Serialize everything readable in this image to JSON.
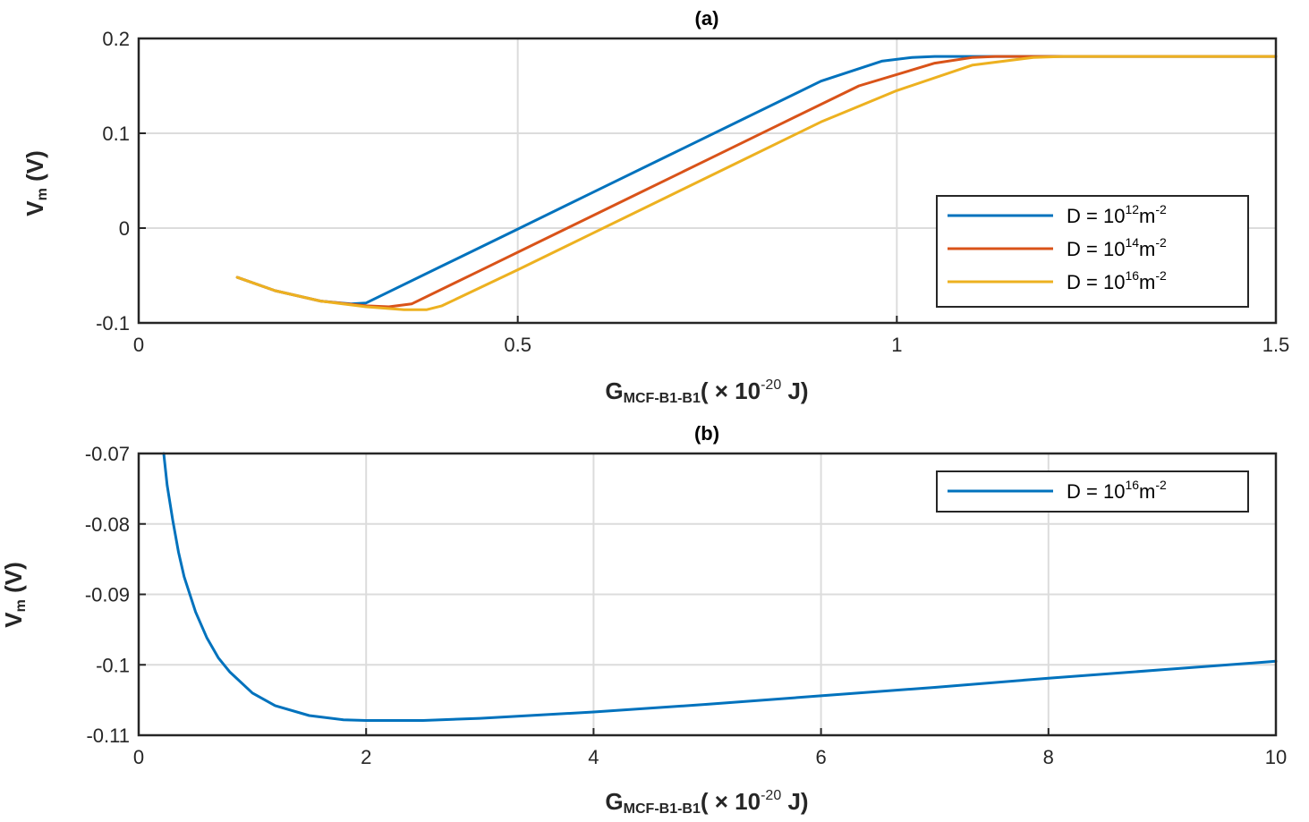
{
  "colors": {
    "blue": "#0072BD",
    "orange": "#D95319",
    "yellow": "#EDB120",
    "axis": "#262626",
    "grid": "#dcdcdc"
  },
  "chart_data": [
    {
      "type": "line",
      "title": "(a)",
      "xlabel": {
        "main": "G",
        "sub": "MCF-B1-B1",
        "rest": "( × 10",
        "exp": "-20",
        "unit": " J)"
      },
      "ylabel": {
        "main": "V",
        "sub": "m",
        "unit": " (V)"
      },
      "xlim": [
        0,
        1.5
      ],
      "ylim": [
        -0.1,
        0.2
      ],
      "xticks": [
        0,
        0.5,
        1,
        1.5
      ],
      "xtick_labels": [
        "0",
        "0.5",
        "1",
        "1.5"
      ],
      "yticks": [
        -0.1,
        0,
        0.1,
        0.2
      ],
      "ytick_labels": [
        "-0.1",
        "0",
        "0.1",
        "0.2"
      ],
      "grid": true,
      "legend_position": "middle-right",
      "series": [
        {
          "name": "D = 10^12 m^-2",
          "legend": {
            "pre": "D  =  10",
            "exp": "12",
            "mid": "m",
            "exp2": "-2"
          },
          "color": "#0072BD",
          "x": [
            0.13,
            0.18,
            0.24,
            0.28,
            0.3,
            0.4,
            0.5,
            0.6,
            0.7,
            0.8,
            0.9,
            0.98,
            1.02,
            1.05,
            1.1,
            1.2,
            1.3,
            1.4,
            1.5
          ],
          "y": [
            -0.052,
            -0.066,
            -0.077,
            -0.08,
            -0.079,
            -0.04,
            -0.001,
            0.038,
            0.077,
            0.116,
            0.155,
            0.176,
            0.18,
            0.181,
            0.181,
            0.181,
            0.181,
            0.181,
            0.181
          ]
        },
        {
          "name": "D = 10^14 m^-2",
          "legend": {
            "pre": "D  =  10",
            "exp": "14",
            "mid": "m",
            "exp2": "-2"
          },
          "color": "#D95319",
          "x": [
            0.13,
            0.18,
            0.24,
            0.3,
            0.33,
            0.36,
            0.45,
            0.55,
            0.65,
            0.75,
            0.85,
            0.95,
            1.05,
            1.1,
            1.13,
            1.2,
            1.3,
            1.4,
            1.5
          ],
          "y": [
            -0.052,
            -0.066,
            -0.077,
            -0.082,
            -0.083,
            -0.08,
            -0.045,
            -0.006,
            0.033,
            0.072,
            0.111,
            0.15,
            0.174,
            0.18,
            0.181,
            0.181,
            0.181,
            0.181,
            0.181
          ]
        },
        {
          "name": "D = 10^16 m^-2",
          "legend": {
            "pre": "D  =  10",
            "exp": "16",
            "mid": "m",
            "exp2": "-2"
          },
          "color": "#EDB120",
          "x": [
            0.13,
            0.18,
            0.24,
            0.3,
            0.35,
            0.38,
            0.4,
            0.5,
            0.6,
            0.7,
            0.8,
            0.9,
            1.0,
            1.1,
            1.18,
            1.22,
            1.3,
            1.4,
            1.5
          ],
          "y": [
            -0.052,
            -0.066,
            -0.077,
            -0.083,
            -0.086,
            -0.086,
            -0.082,
            -0.044,
            -0.005,
            0.034,
            0.073,
            0.112,
            0.145,
            0.172,
            0.18,
            0.181,
            0.181,
            0.181,
            0.181
          ]
        }
      ]
    },
    {
      "type": "line",
      "title": "(b)",
      "xlabel": {
        "main": "G",
        "sub": "MCF-B1-B1",
        "rest": "( × 10",
        "exp": "-20",
        "unit": " J)"
      },
      "ylabel": {
        "main": "V",
        "sub": "m",
        "unit": " (V)"
      },
      "xlim": [
        0,
        10
      ],
      "ylim": [
        -0.11,
        -0.07
      ],
      "xticks": [
        0,
        2,
        4,
        6,
        8,
        10
      ],
      "xtick_labels": [
        "0",
        "2",
        "4",
        "6",
        "8",
        "10"
      ],
      "yticks": [
        -0.11,
        -0.1,
        -0.09,
        -0.08,
        -0.07
      ],
      "ytick_labels": [
        "-0.11",
        "-0.1",
        "-0.09",
        "-0.08",
        "-0.07"
      ],
      "grid": true,
      "legend_position": "top-right",
      "series": [
        {
          "name": "D = 10^16 m^-2",
          "legend": {
            "pre": "D  =  10",
            "exp": "16",
            "mid": "m",
            "exp2": "-2"
          },
          "color": "#0072BD",
          "x": [
            0.22,
            0.25,
            0.3,
            0.35,
            0.4,
            0.5,
            0.6,
            0.7,
            0.8,
            1.0,
            1.2,
            1.5,
            1.8,
            2.0,
            2.5,
            3.0,
            4.0,
            5.0,
            6.0,
            7.0,
            8.0,
            9.0,
            10.0
          ],
          "y": [
            -0.07,
            -0.0745,
            -0.0795,
            -0.084,
            -0.0875,
            -0.0925,
            -0.0962,
            -0.099,
            -0.101,
            -0.104,
            -0.1058,
            -0.1072,
            -0.1078,
            -0.1079,
            -0.1079,
            -0.1076,
            -0.1067,
            -0.1056,
            -0.1044,
            -0.1032,
            -0.1019,
            -0.1007,
            -0.0995
          ]
        }
      ]
    }
  ]
}
